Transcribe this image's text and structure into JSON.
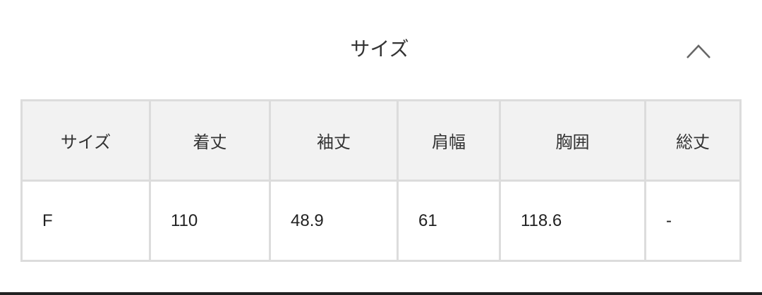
{
  "section": {
    "title": "サイズ",
    "toggle_icon": "chevron-up-icon"
  },
  "table": {
    "headers": [
      "サイズ",
      "着丈",
      "袖丈",
      "肩幅",
      "胸囲",
      "総丈"
    ],
    "rows": [
      [
        "F",
        "110",
        "48.9",
        "61",
        "118.6",
        "-"
      ]
    ]
  }
}
